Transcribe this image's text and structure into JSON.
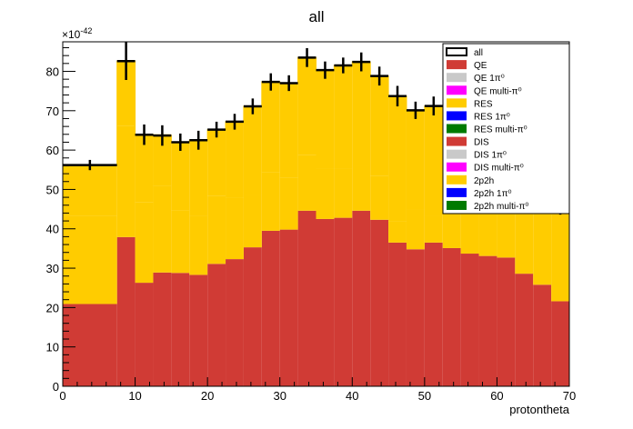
{
  "chart_data": {
    "type": "bar",
    "title": "all",
    "xlabel": "protontheta",
    "ylabel": "",
    "exponent_label": "×10",
    "exponent_value": "-42",
    "xlim": [
      0,
      70
    ],
    "ylim": [
      0,
      87.5
    ],
    "x_ticks": [
      0,
      10,
      20,
      30,
      40,
      50,
      60,
      70
    ],
    "y_ticks": [
      0,
      10,
      20,
      30,
      40,
      50,
      60,
      70,
      80
    ],
    "bin_edges": [
      0,
      7.5,
      10,
      12.5,
      15,
      17.5,
      20,
      22.5,
      25,
      27.5,
      30,
      32.5,
      35,
      37.5,
      40,
      42.5,
      45,
      47.5,
      50,
      52.5,
      55,
      57.5,
      60,
      62.5,
      65,
      67.5,
      70
    ],
    "series": [
      {
        "name": "QE",
        "color": "#d03b35",
        "values": [
          20.9,
          37.9,
          26.3,
          28.9,
          28.8,
          28.3,
          31.1,
          32.3,
          35.3,
          39.5,
          39.8,
          44.6,
          42.5,
          42.8,
          44.6,
          42.3,
          36.5,
          34.8,
          36.5,
          35.1,
          33.7,
          33.1,
          32.7,
          28.6,
          25.8,
          21.6
        ]
      },
      {
        "name": "RES",
        "color": "#ffcc00",
        "values": [
          22.3,
          28.2,
          20.4,
          22.1,
          15.9,
          15.0,
          17.2,
          15.5,
          13.3,
          14.9,
          13.1,
          14.1,
          12.8,
          12.6,
          11.5,
          11.1,
          5.5,
          10.1,
          6.9,
          0,
          0,
          0,
          0,
          0,
          0,
          0
        ]
      },
      {
        "name": "DIS",
        "color": "#d03b35",
        "values": [
          0,
          0,
          0,
          0,
          0,
          0,
          0,
          0,
          0,
          0,
          0,
          0,
          0,
          0,
          0,
          0,
          0,
          0,
          0,
          0,
          0,
          0,
          0,
          0,
          0,
          0
        ]
      },
      {
        "name": "2p2h",
        "color": "#ffcc00",
        "values": [
          13.0,
          16.5,
          17.2,
          13.0,
          17.3,
          19.2,
          16.9,
          19.4,
          22.5,
          22.9,
          24.1,
          24.8,
          25.0,
          26.1,
          26.3,
          25.4,
          31.7,
          25.2,
          27.8,
          33.0,
          29.3,
          29.6,
          28.9,
          27.1,
          26.2,
          24.4
        ]
      }
    ],
    "all_total": {
      "name": "all",
      "values": [
        56.2,
        82.6,
        63.9,
        63.7,
        62.0,
        62.5,
        65.2,
        67.2,
        71.1,
        77.3,
        77.0,
        83.5,
        80.3,
        81.5,
        82.4,
        78.8,
        73.7,
        70.1,
        71.2,
        68.1,
        63.0,
        62.7,
        61.6,
        55.7,
        52.0,
        46.0
      ],
      "errors": [
        1.3,
        4.8,
        2.6,
        2.6,
        2.2,
        2.4,
        2.0,
        2.0,
        2.0,
        2.2,
        2.0,
        2.4,
        2.2,
        2.0,
        2.4,
        2.4,
        2.6,
        2.2,
        2.4,
        2.4,
        2.2,
        2.2,
        2.0,
        2.2,
        2.2,
        2.4
      ]
    },
    "legend": {
      "placement": "top-right",
      "entries": [
        {
          "label": "all",
          "style": "marker",
          "color": "#000000"
        },
        {
          "label": "QE",
          "style": "fill",
          "color": "#d03b35"
        },
        {
          "label": "QE 1π⁰",
          "style": "fill",
          "color": "#c9c9c9"
        },
        {
          "label": "QE multi-π⁰",
          "style": "fill",
          "color": "#ff00ff"
        },
        {
          "label": "RES",
          "style": "fill",
          "color": "#ffcc00"
        },
        {
          "label": "RES 1π⁰",
          "style": "fill",
          "color": "#0000ff"
        },
        {
          "label": "RES multi-π⁰",
          "style": "fill",
          "color": "#007a00"
        },
        {
          "label": "DIS",
          "style": "fill",
          "color": "#d03b35"
        },
        {
          "label": "DIS 1π⁰",
          "style": "fill",
          "color": "#c9c9c9"
        },
        {
          "label": "DIS multi-π⁰",
          "style": "fill",
          "color": "#ff00ff"
        },
        {
          "label": "2p2h",
          "style": "fill",
          "color": "#ffcc00"
        },
        {
          "label": "2p2h 1π⁰",
          "style": "fill",
          "color": "#0000ff"
        },
        {
          "label": "2p2h multi-π⁰",
          "style": "fill",
          "color": "#007a00"
        }
      ]
    }
  }
}
